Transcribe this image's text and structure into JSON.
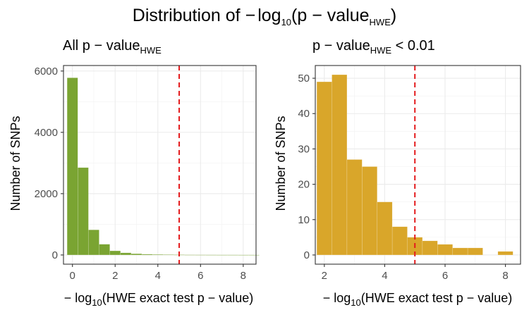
{
  "figure": {
    "title_prefix": "Distribution of ",
    "title_neg": "−",
    "title_log": "log",
    "title_log_base": "10",
    "title_inner": "p − value",
    "title_inner_sub": "HWE"
  },
  "chart_data": [
    {
      "type": "bar",
      "title": "All p − value",
      "title_sub": "HWE",
      "title_suffix": "",
      "xlabel_prefix": "− log",
      "xlabel_base": "10",
      "xlabel_inner": "HWE exact test p − value",
      "ylabel": "Number of SNPs",
      "xlim": [
        -0.42,
        8.6
      ],
      "ylim": [
        -300,
        6180
      ],
      "xticks": [
        0,
        2,
        4,
        6,
        8
      ],
      "xtick_labels": [
        "0",
        "2",
        "4",
        "6",
        "8"
      ],
      "yticks": [
        0,
        2000,
        4000,
        6000
      ],
      "ytick_labels": [
        "0",
        "2000",
        "4000",
        "6000"
      ],
      "bin_width": 0.5,
      "bin_starts": [
        -0.25,
        0.25,
        0.75,
        1.25,
        1.75,
        2.25,
        2.75,
        3.25,
        3.75,
        4.25,
        4.75,
        5.25,
        5.75,
        6.25,
        6.75,
        7.25,
        7.75,
        8.25
      ],
      "values": [
        5780,
        2850,
        820,
        350,
        135,
        70,
        40,
        25,
        18,
        12,
        8,
        5,
        4,
        3,
        2,
        2,
        1,
        1
      ],
      "bar_color": "#7aa432",
      "threshold": 5,
      "threshold_color": "#e41a1c",
      "grid": true
    },
    {
      "type": "bar",
      "title": "p − value",
      "title_sub": "HWE",
      "title_suffix": " < 0.01",
      "xlabel_prefix": "− log",
      "xlabel_base": "10",
      "xlabel_inner": "HWE exact test p − value",
      "ylabel": "Number of SNPs",
      "xlim": [
        1.7,
        8.5
      ],
      "ylim": [
        -2.6,
        53.6
      ],
      "xticks": [
        2,
        4,
        6,
        8
      ],
      "xtick_labels": [
        "2",
        "4",
        "6",
        "8"
      ],
      "yticks": [
        0,
        10,
        20,
        30,
        40,
        50
      ],
      "ytick_labels": [
        "0",
        "10",
        "20",
        "30",
        "40",
        "50"
      ],
      "bin_width": 0.5,
      "bin_starts": [
        1.75,
        2.25,
        2.75,
        3.25,
        3.75,
        4.25,
        4.75,
        5.25,
        5.75,
        6.25,
        6.75,
        7.25,
        7.75
      ],
      "values": [
        49,
        51,
        27,
        25,
        15,
        8,
        5,
        4,
        3,
        2,
        2,
        0,
        1
      ],
      "bar_color": "#d9a62a",
      "threshold": 5,
      "threshold_color": "#e41a1c",
      "grid": true
    }
  ]
}
